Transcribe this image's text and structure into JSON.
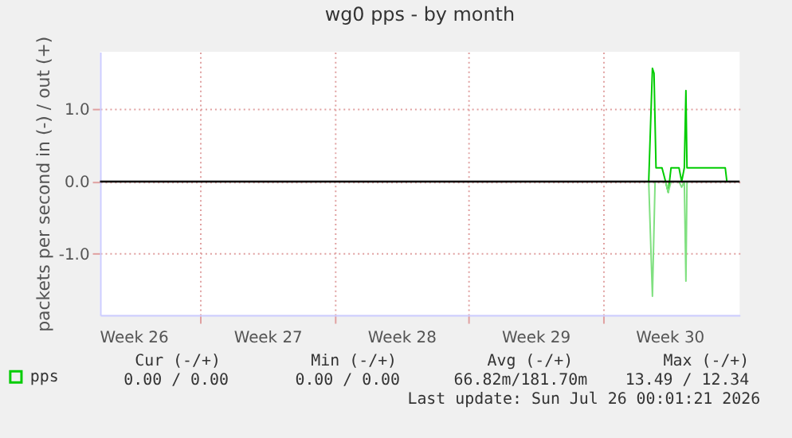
{
  "chart_data": {
    "type": "line",
    "title": "wg0 pps - by month",
    "ylabel": "packets per second in (-) / out (+)",
    "xlim": [
      "2026-06-23T18:00",
      "2026-07-27T04:00"
    ],
    "xticks": [
      {
        "value": "2026-06-25T12:00",
        "label": "Week 26"
      },
      {
        "value": "2026-06-29",
        "label": null
      },
      {
        "value": "2026-07-02T12:00",
        "label": "Week 27"
      },
      {
        "value": "2026-07-06",
        "label": null
      },
      {
        "value": "2026-07-09T12:00",
        "label": "Week 28"
      },
      {
        "value": "2026-07-13",
        "label": null
      },
      {
        "value": "2026-07-16T12:00",
        "label": "Week 29"
      },
      {
        "value": "2026-07-20",
        "label": null
      },
      {
        "value": "2026-07-23T12:00",
        "label": "Week 30"
      }
    ],
    "ylim": [
      -1.85,
      1.8
    ],
    "yticks": [
      {
        "value": -1,
        "label": "-1.0"
      },
      {
        "value": 0,
        "label": "0.0"
      },
      {
        "value": 1,
        "label": "1.0"
      }
    ],
    "grid": true,
    "legend": "bottom left",
    "line_style": "solid",
    "series": [
      {
        "name": "pps",
        "color": "#00cc00",
        "x": [
          "2026-07-22T10:00",
          "2026-07-22T14:40",
          "2026-07-22T16:40",
          "2026-07-22T19:10",
          "2026-07-23T02:40",
          "2026-07-23T07:10",
          "2026-07-23T10:30",
          "2026-07-23T14:00",
          "2026-07-24T00:00",
          "2026-07-24T03:20",
          "2026-07-24T06:40",
          "2026-07-24T08:40",
          "2026-07-24T10:00",
          "2026-07-26T10:00",
          "2026-07-26T12:00"
        ],
        "values": [
          0,
          1.57,
          1.5,
          0.19,
          0.19,
          0,
          -0.15,
          0.19,
          0.19,
          0,
          0.19,
          1.26,
          0.19,
          0.19,
          0
        ]
      },
      {
        "color": "#80e080",
        "x": [
          "2026-07-22T10:00",
          "2026-07-22T14:40",
          "2026-07-22T18:00",
          "2026-07-23T07:10",
          "2026-07-23T10:30",
          "2026-07-23T14:00",
          "2026-07-24T00:00",
          "2026-07-24T03:20",
          "2026-07-24T06:40",
          "2026-07-24T08:40",
          "2026-07-24T10:00",
          "2026-07-26T12:00"
        ],
        "values": [
          0,
          -1.59,
          0,
          0,
          -0.15,
          0,
          0,
          -0.08,
          0,
          -1.38,
          0,
          0
        ]
      }
    ],
    "ref_lines": [
      {
        "axis": "y",
        "value": 0,
        "color": "#000000"
      }
    ],
    "annotations": [
      "Cur (-/+)",
      "Min (-/+)",
      "Avg (-/+)",
      "Max (-/+)",
      "0.00 /   0.00",
      "0.00 /   0.00",
      "66.82m/181.70m",
      "13.49 / 12.34",
      "Last update: Sun Jul 26 00:01:21 2026"
    ]
  }
}
